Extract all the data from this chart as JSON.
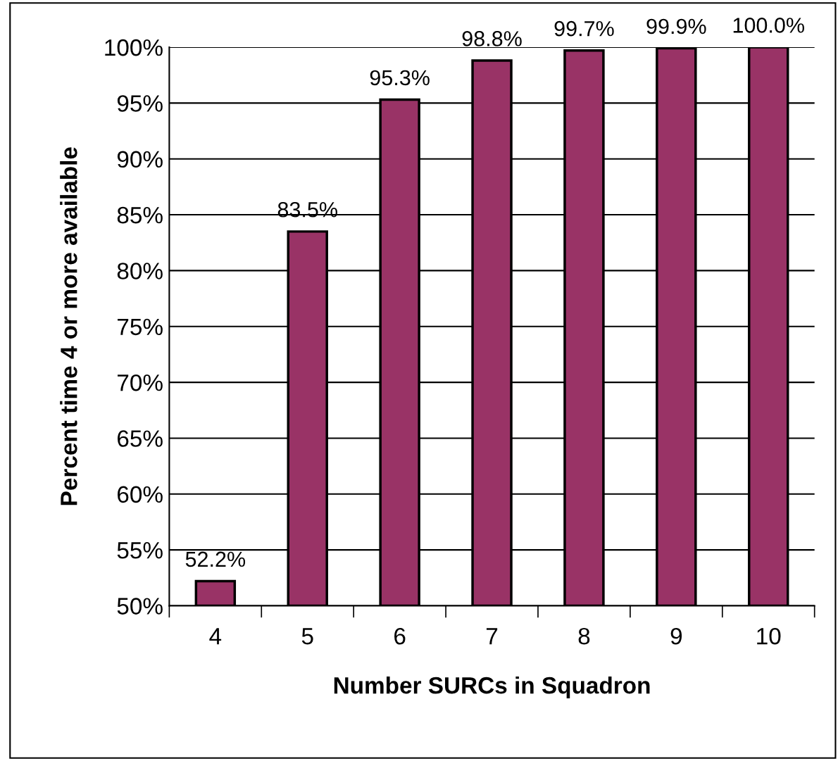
{
  "chart_data": {
    "type": "bar",
    "xlabel": "Number SURCs in Squadron",
    "ylabel": "Percent time 4 or more available",
    "categories": [
      "4",
      "5",
      "6",
      "7",
      "8",
      "9",
      "10"
    ],
    "values": [
      52.2,
      83.5,
      95.3,
      98.8,
      99.7,
      99.9,
      100.0
    ],
    "value_labels": [
      "52.2%",
      "83.5%",
      "95.3%",
      "98.8%",
      "99.7%",
      "99.9%",
      "100.0%"
    ],
    "color": "#993366",
    "ylim": [
      50,
      100
    ],
    "yticks": [
      {
        "value": 50,
        "label": "50%"
      },
      {
        "value": 55,
        "label": "55%"
      },
      {
        "value": 60,
        "label": "60%"
      },
      {
        "value": 65,
        "label": "65%"
      },
      {
        "value": 70,
        "label": "70%"
      },
      {
        "value": 75,
        "label": "75%"
      },
      {
        "value": 80,
        "label": "80%"
      },
      {
        "value": 85,
        "label": "85%"
      },
      {
        "value": 90,
        "label": "90%"
      },
      {
        "value": 95,
        "label": "95%"
      },
      {
        "value": 100,
        "label": "100%"
      }
    ],
    "grid": "y",
    "legend": false
  }
}
